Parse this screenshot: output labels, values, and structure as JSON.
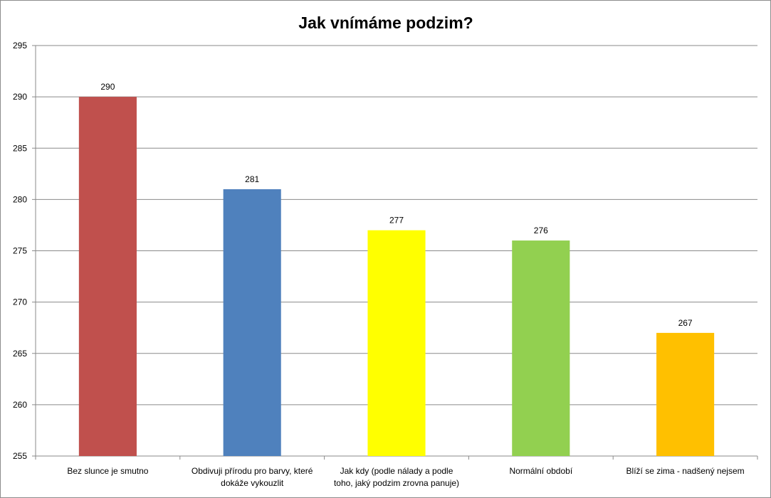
{
  "chart_data": {
    "type": "bar",
    "title": "Jak vnímáme podzim?",
    "xlabel": "",
    "ylabel": "",
    "ylim": [
      255,
      295
    ],
    "yticks": [
      255,
      260,
      265,
      270,
      275,
      280,
      285,
      290,
      295
    ],
    "grid": true,
    "legend": "none",
    "categories": [
      [
        "Bez slunce je smutno"
      ],
      [
        "Obdivuji přírodu pro barvy, které",
        "dokáže vykouzlit"
      ],
      [
        "Jak kdy (podle nálady a podle",
        "toho, jaký podzim zrovna panuje)"
      ],
      [
        "Normální období"
      ],
      [
        "Blíží se zima - nadšený nejsem"
      ]
    ],
    "values": [
      290,
      281,
      277,
      276,
      267
    ],
    "colors": [
      "#c0504d",
      "#4f81bd",
      "#ffff00",
      "#92d050",
      "#ffc000"
    ]
  }
}
